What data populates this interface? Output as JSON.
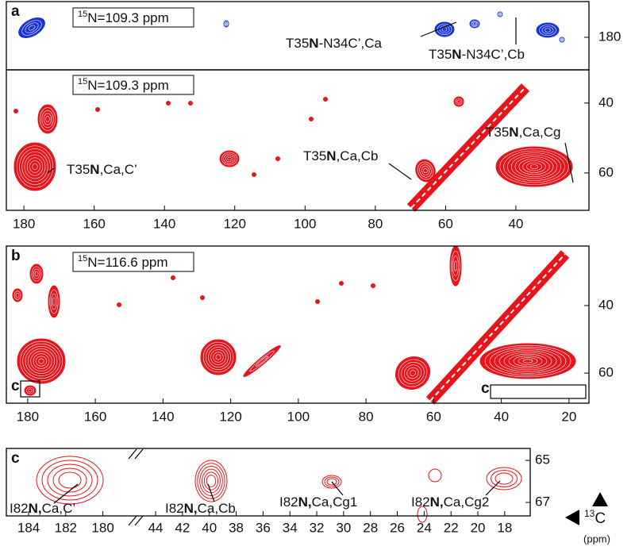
{
  "panels": [
    {
      "letter": "a",
      "box": {
        "sup": "15",
        "text": "N=109.3 ppm"
      },
      "ylim": [
        169.8,
        189.3
      ],
      "yticks": [
        180
      ],
      "labels": [
        {
          "pre": "T35",
          "bold": "N",
          "post": "-N34C’,Ca"
        },
        {
          "pre": "T35",
          "bold": "N",
          "post": "-N34C’,Cb"
        }
      ]
    },
    {
      "box": {
        "sup": "15",
        "text": "N=109.3 ppm"
      },
      "xlim": [
        185,
        19.2
      ],
      "xticks": [
        180,
        160,
        140,
        120,
        100,
        80,
        60,
        40
      ],
      "ylim": [
        30.5,
        70.7
      ],
      "yticks": [
        40,
        60
      ],
      "labels": [
        {
          "pre": "T35",
          "bold": "N",
          "post": ",Ca,C’"
        },
        {
          "pre": "T35",
          "bold": "N",
          "post": ",Ca,Cb"
        },
        {
          "pre": "T35",
          "bold": "N",
          "post": ",Ca,Cg"
        }
      ]
    },
    {
      "letter": "b",
      "box": {
        "sup": "15",
        "text": "N=116.6 ppm"
      },
      "xlim": [
        186.3,
        14.1
      ],
      "xticks": [
        180,
        160,
        140,
        120,
        100,
        80,
        60,
        40,
        20
      ],
      "ylim": [
        22.4,
        68.9
      ],
      "yticks": [
        40,
        60
      ],
      "insets": [
        "c",
        "c"
      ]
    },
    {
      "letter": "c",
      "xsegments": [
        {
          "xlim": [
            185.2,
            178.7
          ],
          "xticks": [
            184,
            182,
            180
          ]
        },
        {
          "xlim": [
            44.95,
            16.1
          ],
          "xticks": [
            44,
            42,
            40,
            38,
            36,
            34,
            32,
            30,
            28,
            26,
            24,
            22,
            20,
            18
          ]
        }
      ],
      "ylim": [
        64.43,
        67.64
      ],
      "yticks": [
        65,
        67
      ],
      "labels": [
        {
          "pre": "I82",
          "bold": "N,",
          "post": "Ca,C’"
        },
        {
          "pre": "I82",
          "bold": "N,",
          "post": "Ca,Cb"
        },
        {
          "pre": "I82",
          "bold": "N,",
          "post": "Ca,Cg1"
        },
        {
          "pre": "I82",
          "bold": "N,",
          "post": "Ca,Cg2"
        }
      ]
    }
  ],
  "axis_label": {
    "sup": "13",
    "text": "C",
    "unit": "(ppm)"
  }
}
